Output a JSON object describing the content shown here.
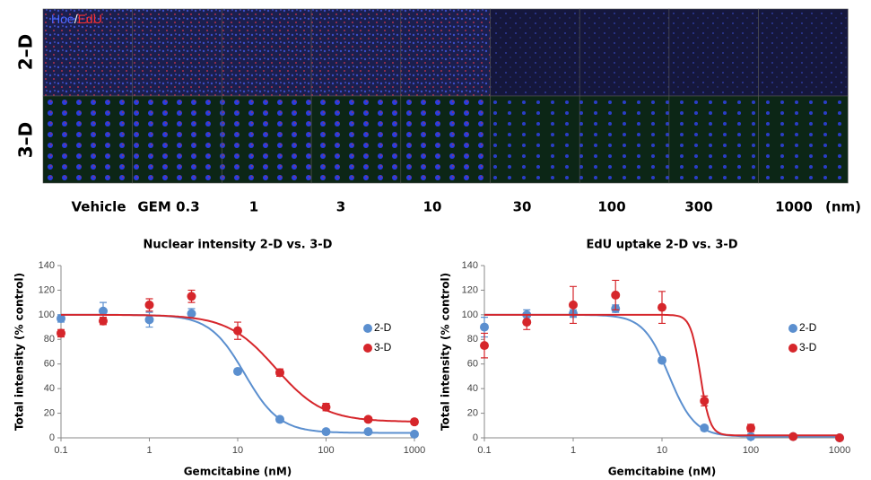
{
  "image_panel": {
    "stain": [
      "Hoe",
      "/",
      "EdU"
    ],
    "rows": [
      "2–D",
      "3–D"
    ],
    "conditions": [
      "Vehicle",
      "GEM 0.3",
      "1",
      "3",
      "10",
      "30",
      "100",
      "300",
      "1000"
    ],
    "unit": "(nm)"
  },
  "chart_data": [
    {
      "type": "scatter",
      "title": "Nuclear intensity 2-D vs. 3-D",
      "x_label": "Gemcitabine (nM)",
      "y_label": "Total intensity (% control)",
      "x": [
        0.1,
        0.3,
        1,
        3,
        10,
        30,
        100,
        300,
        1000
      ],
      "xscale": "log",
      "xlim": [
        0.1,
        1000
      ],
      "xticks": [
        0.1,
        1,
        10,
        100,
        1000
      ],
      "ylim": [
        0,
        140
      ],
      "yticks": [
        0,
        20,
        40,
        60,
        80,
        100,
        120,
        140
      ],
      "legend": "right",
      "series": [
        {
          "name": "2-D",
          "color": "#5b8fcf",
          "values": [
            97,
            103,
            96,
            101,
            54,
            15,
            5,
            5,
            3
          ],
          "errors": [
            3,
            7,
            6,
            4,
            2,
            2,
            1,
            1,
            1
          ],
          "fit": {
            "top": 100,
            "bottom": 4,
            "ec50": 12,
            "hill": 2.2
          }
        },
        {
          "name": "3-D",
          "color": "#d6262b",
          "values": [
            85,
            95,
            108,
            115,
            87,
            53,
            25,
            15,
            13
          ],
          "errors": [
            3,
            3,
            5,
            5,
            7,
            3,
            3,
            2,
            2
          ],
          "fit": {
            "top": 100,
            "bottom": 13,
            "ec50": 27,
            "hill": 1.6
          }
        }
      ]
    },
    {
      "type": "scatter",
      "title": "EdU uptake 2-D vs. 3-D",
      "x_label": "Gemcitabine (nM)",
      "y_label": "Total intensity (% control)",
      "x": [
        0.1,
        0.3,
        1,
        3,
        10,
        30,
        100,
        300,
        1000
      ],
      "xscale": "log",
      "xlim": [
        0.1,
        1000
      ],
      "xticks": [
        0.1,
        1,
        10,
        100,
        1000
      ],
      "ylim": [
        0,
        140
      ],
      "yticks": [
        0,
        20,
        40,
        60,
        80,
        100,
        120,
        140
      ],
      "legend": "right",
      "series": [
        {
          "name": "2-D",
          "color": "#5b8fcf",
          "values": [
            90,
            100,
            101,
            105,
            63,
            8,
            1,
            1,
            0
          ],
          "errors": [
            8,
            4,
            3,
            3,
            2,
            2,
            1,
            1,
            1
          ],
          "fit": {
            "top": 100,
            "bottom": 1,
            "ec50": 12,
            "hill": 3
          }
        },
        {
          "name": "3-D",
          "color": "#d6262b",
          "values": [
            75,
            94,
            108,
            116,
            106,
            30,
            8,
            1,
            0
          ],
          "errors": [
            10,
            6,
            15,
            12,
            13,
            4,
            3,
            1,
            1
          ],
          "fit": {
            "top": 100,
            "bottom": 2,
            "ec50": 27,
            "hill": 8
          }
        }
      ]
    }
  ]
}
